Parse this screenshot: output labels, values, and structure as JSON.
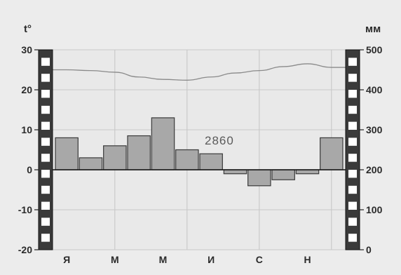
{
  "chart_data": {
    "type": "bar",
    "categories": [
      "Я",
      "",
      "М",
      "",
      "М",
      "",
      "И",
      "",
      "С",
      "",
      "Н",
      ""
    ],
    "series": [
      {
        "type": "bar",
        "axis": "left",
        "values": [
          8,
          3,
          6,
          8.5,
          13,
          5,
          4,
          -1,
          -4,
          -2.5,
          -1,
          8
        ]
      },
      {
        "type": "line",
        "axis": "right",
        "values": [
          450,
          448,
          444,
          432,
          426,
          424,
          432,
          442,
          448,
          458,
          465,
          456
        ]
      }
    ],
    "left_axis": {
      "label": "t°",
      "ylim": [
        -20,
        30
      ],
      "ticks": [
        "30",
        "20",
        "10",
        "0",
        "-10",
        "-20"
      ]
    },
    "right_axis": {
      "label": "мм",
      "ylim": [
        0,
        500
      ],
      "ticks": [
        "500",
        "400",
        "300",
        "200",
        "100",
        "0"
      ]
    },
    "annotation": "2860",
    "grid": true,
    "colors": {
      "bar": "#a8a8a8",
      "bar_edge": "#3a3a3a",
      "line": "#8a8a8a",
      "zero_line": "#111111",
      "scale_black": "#3a3a3a",
      "scale_white": "#ffffff"
    }
  }
}
